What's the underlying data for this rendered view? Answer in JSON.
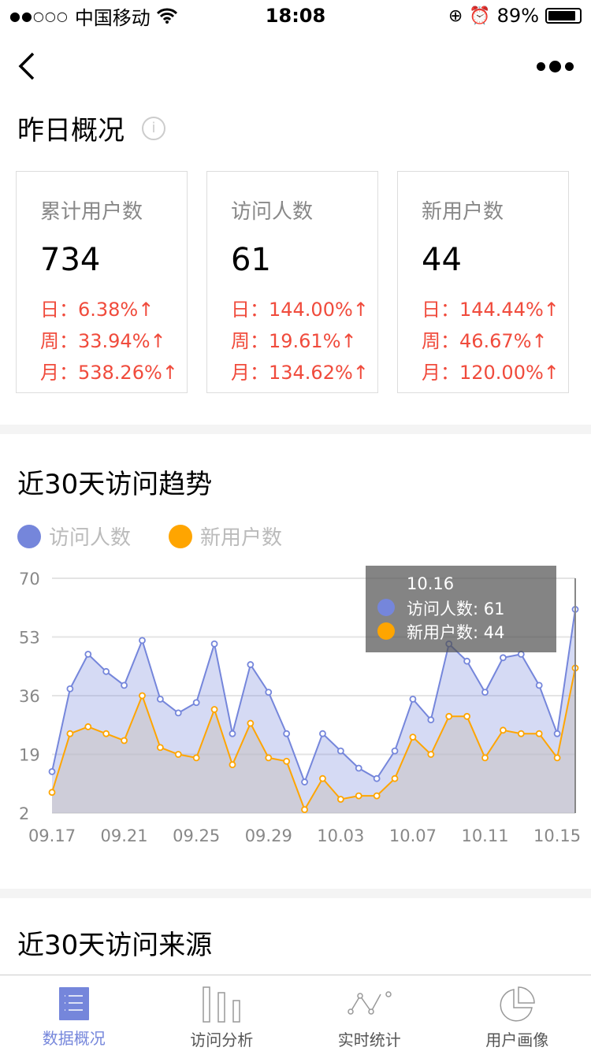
{
  "status_bar": {
    "carrier": "中国移动",
    "time": "18:08",
    "battery": "89%",
    "battery_level": 0.89,
    "signal_dots_filled": 2,
    "signal_dots_total": 5
  },
  "nav": {
    "back_icon": "chevron-left",
    "more_icon": "more-dots"
  },
  "overview": {
    "title": "昨日概况",
    "info_icon": "info-circle",
    "cards": [
      {
        "label": "累计用户数",
        "value": "734",
        "rates": [
          "日：6.38%↑",
          "周：33.94%↑",
          "月：538.26%↑"
        ]
      },
      {
        "label": "访问人数",
        "value": "61",
        "rates": [
          "日：144.00%↑",
          "周：19.61%↑",
          "月：134.62%↑"
        ]
      },
      {
        "label": "新用户数",
        "value": "44",
        "rates": [
          "日：144.44%↑",
          "周：46.67%↑",
          "月：120.00%↑"
        ]
      }
    ]
  },
  "trend": {
    "title": "近30天访问趋势"
  },
  "chart_data": {
    "type": "area",
    "x": [
      "09.17",
      "09.18",
      "09.19",
      "09.20",
      "09.21",
      "09.22",
      "09.23",
      "09.24",
      "09.25",
      "09.26",
      "09.27",
      "09.28",
      "09.29",
      "09.30",
      "10.01",
      "10.02",
      "10.03",
      "10.04",
      "10.05",
      "10.06",
      "10.07",
      "10.08",
      "10.09",
      "10.10",
      "10.11",
      "10.12",
      "10.13",
      "10.14",
      "10.15",
      "10.16"
    ],
    "x_ticks": [
      "09.17",
      "09.21",
      "09.25",
      "09.29",
      "10.03",
      "10.07",
      "10.11",
      "10.15"
    ],
    "y_ticks": [
      70,
      53,
      36,
      19,
      2
    ],
    "ylim": [
      2,
      70
    ],
    "grid": true,
    "legend_position": "top-left",
    "series": [
      {
        "name": "访问人数",
        "color": "#7586db",
        "values": [
          14,
          38,
          48,
          43,
          39,
          52,
          35,
          31,
          34,
          51,
          25,
          45,
          37,
          25,
          11,
          25,
          20,
          15,
          12,
          20,
          35,
          29,
          51,
          46,
          37,
          47,
          48,
          39,
          25,
          61
        ]
      },
      {
        "name": "新用户数",
        "color": "#ffa500",
        "values": [
          8,
          25,
          27,
          25,
          23,
          36,
          21,
          19,
          18,
          32,
          16,
          28,
          18,
          17,
          3,
          12,
          6,
          7,
          7,
          12,
          24,
          19,
          30,
          30,
          18,
          26,
          25,
          25,
          18,
          44
        ]
      }
    ],
    "tooltip": {
      "title": "10.16",
      "lines": [
        "访问人数: 61",
        "新用户数: 44"
      ]
    }
  },
  "source": {
    "title": "近30天访问来源"
  },
  "tabbar": {
    "items": [
      {
        "label": "数据概况",
        "icon": "list-doc",
        "active": true
      },
      {
        "label": "访问分析",
        "icon": "bar-chart",
        "active": false
      },
      {
        "label": "实时统计",
        "icon": "line-chart",
        "active": false
      },
      {
        "label": "用户画像",
        "icon": "pie-chart",
        "active": false
      }
    ]
  }
}
